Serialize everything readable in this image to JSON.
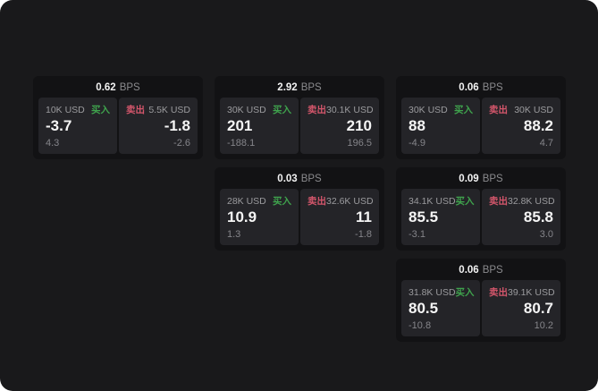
{
  "labels": {
    "bps": "BPS",
    "buy": "买入",
    "sell": "卖出"
  },
  "colors": {
    "page_bg": "#19191b",
    "card_bg": "#121214",
    "panel_bg": "#242428",
    "buy_green": "#3fa34d",
    "sell_red": "#d4566b"
  },
  "cards": [
    {
      "bps": "0.62",
      "buy_amount": "10K USD",
      "buy_value": "-3.7",
      "buy_delta": "4.3",
      "sell_amount": "5.5K USD",
      "sell_value": "-1.8",
      "sell_delta": "-2.6"
    },
    {
      "bps": "2.92",
      "buy_amount": "30K USD",
      "buy_value": "201",
      "buy_delta": "-188.1",
      "sell_amount": "30.1K USD",
      "sell_value": "210",
      "sell_delta": "196.5"
    },
    {
      "bps": "0.06",
      "buy_amount": "30K USD",
      "buy_value": "88",
      "buy_delta": "-4.9",
      "sell_amount": "30K USD",
      "sell_value": "88.2",
      "sell_delta": "4.7"
    },
    {
      "bps": "0.03",
      "buy_amount": "28K USD",
      "buy_value": "10.9",
      "buy_delta": "1.3",
      "sell_amount": "32.6K USD",
      "sell_value": "11",
      "sell_delta": "-1.8"
    },
    {
      "bps": "0.09",
      "buy_amount": "34.1K USD",
      "buy_value": "85.5",
      "buy_delta": "-3.1",
      "sell_amount": "32.8K USD",
      "sell_value": "85.8",
      "sell_delta": "3.0"
    },
    {
      "bps": "0.06",
      "buy_amount": "31.8K USD",
      "buy_value": "80.5",
      "buy_delta": "-10.8",
      "sell_amount": "39.1K USD",
      "sell_value": "80.7",
      "sell_delta": "10.2"
    }
  ]
}
